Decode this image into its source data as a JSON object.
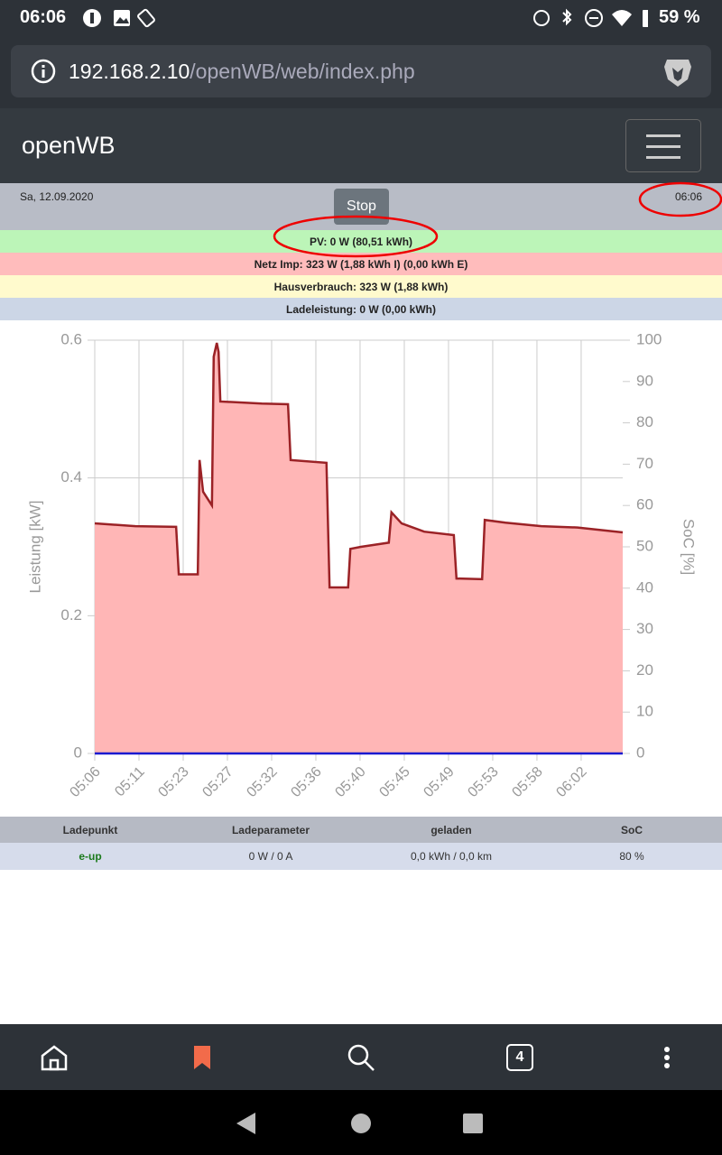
{
  "status_bar": {
    "time": "06:06",
    "battery": "59 %"
  },
  "address_bar": {
    "host": "192.168.2.10",
    "path": "/openWB/web/index.php"
  },
  "navbar": {
    "brand": "openWB"
  },
  "header": {
    "date": "Sa, 12.09.2020",
    "button": "Stop",
    "time": "06:06"
  },
  "summary": {
    "pv": "PV: 0 W (80,51 kWh)",
    "grid": "Netz Imp: 323 W (1,88 kWh I) (0,00 kWh E)",
    "house": "Hausverbrauch: 323 W (1,88 kWh)",
    "charging": "Ladeleistung: 0 W (0,00 kWh)"
  },
  "chart_data": {
    "type": "area",
    "ylabel": "Leistung [kW]",
    "y2label": "SoC [%]",
    "xlim": [
      0,
      11.94
    ],
    "xticks": [
      {
        "value": 0,
        "label": "05:06"
      },
      {
        "value": 1,
        "label": "05:11"
      },
      {
        "value": 2,
        "label": "05:23"
      },
      {
        "value": 3,
        "label": "05:27"
      },
      {
        "value": 4,
        "label": "05:32"
      },
      {
        "value": 5,
        "label": "05:36"
      },
      {
        "value": 6,
        "label": "05:40"
      },
      {
        "value": 7,
        "label": "05:45"
      },
      {
        "value": 8,
        "label": "05:49"
      },
      {
        "value": 9,
        "label": "05:53"
      },
      {
        "value": 10,
        "label": "05:58"
      },
      {
        "value": 11,
        "label": "06:02"
      }
    ],
    "ylim": [
      0,
      0.6
    ],
    "yticks": [
      0,
      0.2,
      0.4,
      0.6
    ],
    "y2lim": [
      0,
      100
    ],
    "y2ticks": [
      0,
      10,
      20,
      30,
      40,
      50,
      60,
      70,
      80,
      90,
      100
    ],
    "grid": true,
    "series": [
      {
        "color": "#9b2226",
        "fill": "#ffb6b6",
        "x": [
          0,
          0.92,
          1.84,
          1.9,
          2.33,
          2.37,
          2.45,
          2.65,
          2.69,
          2.76,
          2.8,
          2.84,
          3.78,
          4.37,
          4.43,
          5.24,
          5.31,
          5.73,
          5.78,
          6.02,
          6.65,
          6.71,
          6.94,
          7.45,
          8.12,
          8.18,
          8.76,
          8.82,
          9.29,
          10.1,
          10.92,
          11.94
        ],
        "values": [
          0.334,
          0.33,
          0.329,
          0.26,
          0.26,
          0.426,
          0.38,
          0.36,
          0.576,
          0.596,
          0.583,
          0.511,
          0.508,
          0.507,
          0.426,
          0.422,
          0.241,
          0.241,
          0.297,
          0.3,
          0.306,
          0.35,
          0.334,
          0.322,
          0.317,
          0.254,
          0.253,
          0.339,
          0.335,
          0.33,
          0.328,
          0.321
        ]
      },
      {
        "color": "#1a1ad0",
        "axis": "y2",
        "x": [
          0,
          11.94
        ],
        "values": [
          0,
          0
        ]
      }
    ]
  },
  "table": {
    "columns": [
      "Ladepunkt",
      "Ladeparameter",
      "geladen",
      "SoC"
    ],
    "rows": [
      [
        "e-up",
        "0 W / 0 A",
        "0,0 kWh / 0,0 km",
        "80 %"
      ]
    ]
  },
  "bottom_nav": {
    "tabs": "4"
  }
}
